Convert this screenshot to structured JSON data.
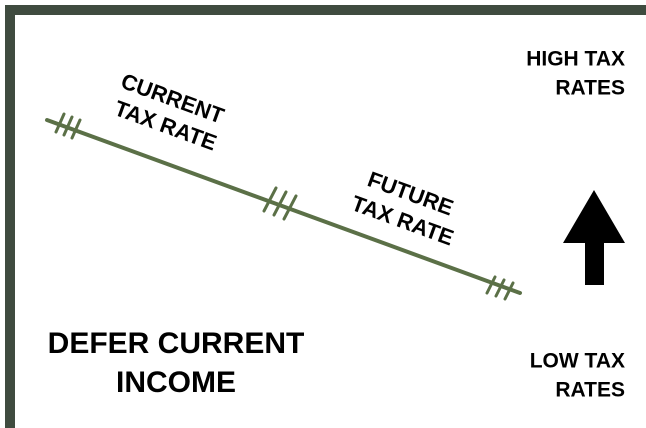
{
  "current_label": [
    "CURRENT",
    "TAX RATE"
  ],
  "future_label": [
    "FUTURE",
    "TAX RATE"
  ],
  "high_label": [
    "HIGH TAX",
    "RATES"
  ],
  "low_label": [
    "LOW TAX",
    "RATES"
  ],
  "defer_label": [
    "DEFER CURRENT",
    "INCOME"
  ]
}
